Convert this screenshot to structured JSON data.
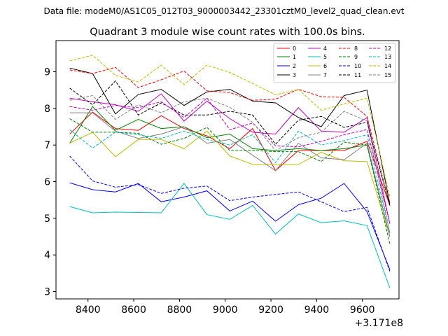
{
  "chart_data": {
    "type": "line",
    "suptitle": "Data file: modeM0/AS1C05_012T03_9000003442_23301cztM0_level2_quad_clean.evt",
    "title": "Quadrant 3 module wise count rates with 100.0s bins.",
    "xlabel": "",
    "ylabel": "",
    "x_offset_label": "+3.171e8",
    "xlim": [
      8260,
      9760
    ],
    "ylim": [
      2.8,
      9.85
    ],
    "xticks": [
      8400,
      8600,
      8800,
      9000,
      9200,
      9400,
      9600
    ],
    "yticks": [
      3,
      4,
      5,
      6,
      7,
      8,
      9
    ],
    "x": [
      8320,
      8420,
      8520,
      8620,
      8720,
      8820,
      8920,
      9020,
      9120,
      9220,
      9320,
      9420,
      9520,
      9620,
      9720
    ],
    "legend_position": "upper-right",
    "series": [
      {
        "name": "0",
        "color": "#ff0000",
        "dash": "solid",
        "values": [
          7.3,
          7.9,
          7.45,
          7.4,
          7.8,
          7.45,
          7.25,
          6.9,
          7.45,
          6.3,
          6.85,
          6.85,
          6.85,
          7.1,
          5.35
        ]
      },
      {
        "name": "1",
        "color": "#008000",
        "dash": "solid",
        "values": [
          7.05,
          8.05,
          7.4,
          7.7,
          7.45,
          7.5,
          7.2,
          7.3,
          6.9,
          6.85,
          6.9,
          6.85,
          6.9,
          7.0,
          4.5
        ]
      },
      {
        "name": "2",
        "color": "#0000ff",
        "dash": "solid",
        "values": [
          5.97,
          5.78,
          5.72,
          5.95,
          5.45,
          5.58,
          5.75,
          5.2,
          5.47,
          4.92,
          5.37,
          5.55,
          5.95,
          5.18,
          3.6
        ]
      },
      {
        "name": "3",
        "color": "#000000",
        "dash": "solid",
        "values": [
          9.1,
          8.95,
          7.85,
          8.38,
          8.52,
          8.08,
          8.45,
          8.52,
          8.2,
          8.15,
          7.75,
          7.5,
          8.35,
          8.5,
          5.4
        ]
      },
      {
        "name": "4",
        "color": "#c000c0",
        "dash": "solid",
        "values": [
          8.28,
          8.18,
          8.1,
          7.92,
          8.4,
          7.65,
          8.2,
          7.72,
          7.35,
          7.3,
          8.02,
          7.38,
          7.35,
          7.75,
          4.85
        ]
      },
      {
        "name": "5",
        "color": "#00bfbf",
        "dash": "solid",
        "values": [
          5.32,
          5.15,
          5.17,
          5.16,
          5.15,
          5.95,
          5.1,
          4.97,
          5.35,
          4.57,
          5.12,
          4.88,
          4.93,
          4.8,
          3.1
        ]
      },
      {
        "name": "6",
        "color": "#bfbf00",
        "dash": "solid",
        "values": [
          7.05,
          7.35,
          6.68,
          7.15,
          7.15,
          6.9,
          7.38,
          6.7,
          6.47,
          6.47,
          6.47,
          6.8,
          6.57,
          6.55,
          4.5
        ]
      },
      {
        "name": "7",
        "color": "#808080",
        "dash": "solid",
        "values": [
          7.88,
          7.88,
          7.38,
          7.18,
          7.3,
          7.5,
          7.05,
          7.15,
          6.72,
          6.3,
          7.05,
          6.65,
          6.6,
          7.05,
          4.5
        ]
      },
      {
        "name": "8",
        "color": "#ff0000",
        "dash": "dashed",
        "values": [
          9.05,
          8.95,
          9.12,
          8.57,
          8.78,
          9.02,
          8.48,
          8.43,
          8.22,
          8.25,
          8.52,
          8.32,
          8.3,
          7.78,
          5.35
        ]
      },
      {
        "name": "9",
        "color": "#008000",
        "dash": "dashed",
        "values": [
          7.72,
          7.35,
          7.35,
          7.32,
          7.02,
          7.18,
          7.48,
          6.85,
          6.85,
          6.82,
          6.82,
          6.55,
          7.08,
          7.0,
          4.3
        ]
      },
      {
        "name": "10",
        "color": "#0000ff",
        "dash": "dashed",
        "values": [
          6.7,
          6.02,
          5.85,
          5.92,
          5.68,
          5.82,
          5.88,
          5.48,
          5.58,
          5.65,
          5.72,
          5.45,
          5.18,
          5.3,
          3.55
        ]
      },
      {
        "name": "11",
        "color": "#000000",
        "dash": "dashed",
        "values": [
          8.55,
          8.1,
          8.75,
          7.82,
          8.15,
          7.82,
          7.82,
          7.92,
          7.82,
          7.02,
          7.68,
          7.78,
          7.48,
          7.62,
          5.35
        ]
      },
      {
        "name": "12",
        "color": "#c000c0",
        "dash": "dashed",
        "values": [
          8.05,
          7.95,
          8.08,
          8.02,
          8.18,
          7.75,
          8.28,
          7.42,
          7.6,
          6.98,
          6.95,
          7.1,
          7.28,
          7.42,
          4.85
        ]
      },
      {
        "name": "13",
        "color": "#00bfbf",
        "dash": "dashed",
        "values": [
          7.42,
          6.92,
          7.35,
          7.28,
          7.18,
          7.38,
          7.15,
          7.0,
          7.28,
          6.52,
          7.38,
          7.0,
          7.12,
          7.28,
          4.6
        ]
      },
      {
        "name": "14",
        "color": "#bfbf00",
        "dash": "dashed",
        "values": [
          9.3,
          9.45,
          8.9,
          8.72,
          9.18,
          8.65,
          9.18,
          8.98,
          8.68,
          8.37,
          8.52,
          7.95,
          8.12,
          8.28,
          5.6
        ]
      },
      {
        "name": "15",
        "color": "#808080",
        "dash": "dashed",
        "values": [
          8.22,
          8.35,
          7.7,
          8.1,
          7.88,
          8.18,
          8.28,
          8.03,
          7.62,
          6.85,
          7.2,
          7.35,
          7.92,
          7.65,
          4.6
        ]
      }
    ]
  }
}
